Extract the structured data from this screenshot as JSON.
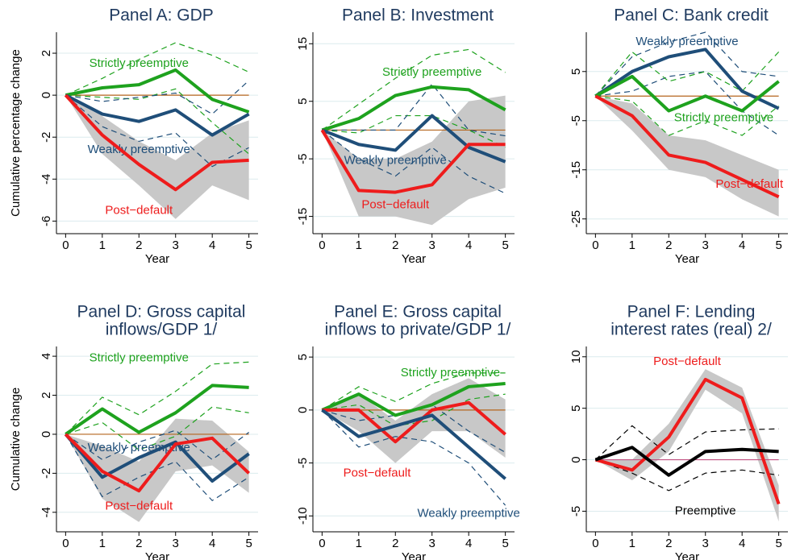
{
  "chart_data": [
    {
      "type": "line",
      "title": [
        "Panel A: GDP"
      ],
      "xlabel": "Year",
      "ylabel": "Cumulative percentage change",
      "x": [
        0,
        1,
        2,
        3,
        4,
        5
      ],
      "xlim": [
        -0.25,
        5.25
      ],
      "xticks": [
        0,
        1,
        2,
        3,
        4,
        5
      ],
      "ylim": [
        -6.6,
        3
      ],
      "yticks": [
        -6,
        -4,
        -2,
        0,
        2
      ],
      "grid": true,
      "hline": 0,
      "hline_color": "#b5651d",
      "series": [
        {
          "name": "Strictly preemptive",
          "color": "#1ea21e",
          "band": "dashed",
          "values": [
            0,
            0.35,
            0.5,
            1.2,
            -0.2,
            -0.8
          ],
          "lower": [
            0,
            -0.1,
            -0.2,
            0.3,
            -1.3,
            -2.8
          ],
          "upper": [
            0,
            0.8,
            1.7,
            2.5,
            1.9,
            1.1
          ]
        },
        {
          "name": "Weakly preemptive",
          "color": "#1f4e79",
          "band": "dashed",
          "values": [
            0,
            -0.9,
            -1.25,
            -0.7,
            -1.9,
            -0.9
          ],
          "lower": [
            0,
            -1.5,
            -2.2,
            -1.8,
            -3.4,
            -2.5
          ],
          "upper": [
            0,
            -0.3,
            -0.1,
            0.1,
            -0.9,
            0.7
          ]
        },
        {
          "name": "Post−default",
          "color": "#ee1c1c",
          "band": "shaded",
          "values": [
            0,
            -1.9,
            -3.3,
            -4.5,
            -3.2,
            -3.1
          ],
          "lower": [
            0,
            -2.8,
            -4.3,
            -5.9,
            -4.3,
            -5.0
          ],
          "upper": [
            0,
            -1.0,
            -2.2,
            -3.1,
            -1.8,
            -1.2
          ]
        }
      ]
    },
    {
      "type": "line",
      "title": [
        "Panel B: Investment"
      ],
      "xlabel": "Year",
      "x": [
        0,
        1,
        2,
        3,
        4,
        5
      ],
      "xlim": [
        -0.25,
        5.25
      ],
      "xticks": [
        0,
        1,
        2,
        3,
        4,
        5
      ],
      "ylim": [
        -18,
        17
      ],
      "yticks": [
        -15,
        -5,
        5,
        15
      ],
      "grid": true,
      "hline": 0,
      "hline_color": "#b5651d",
      "series": [
        {
          "name": "Strictly preemptive",
          "color": "#1ea21e",
          "band": "dashed",
          "values": [
            0,
            2,
            6,
            7.5,
            7,
            3.5
          ],
          "lower": [
            0,
            -0.5,
            2.5,
            2.5,
            0,
            -3
          ],
          "upper": [
            0,
            4.5,
            9,
            13,
            14,
            10
          ]
        },
        {
          "name": "Weakly preemptive",
          "color": "#1f4e79",
          "band": "dashed",
          "values": [
            0,
            -2.5,
            -3.5,
            2.5,
            -3,
            -5.5
          ],
          "lower": [
            0,
            -5,
            -8,
            -3,
            -8,
            -11
          ],
          "upper": [
            0,
            0,
            0,
            8,
            0,
            -1
          ]
        },
        {
          "name": "Post−default",
          "color": "#ee1c1c",
          "band": "shaded",
          "values": [
            0,
            -10.5,
            -10.8,
            -9.5,
            -2.5,
            -2.5
          ],
          "lower": [
            0,
            -15,
            -15,
            -16.5,
            -12,
            -10
          ],
          "upper": [
            0,
            -5,
            -5,
            -2,
            5,
            6
          ]
        }
      ]
    },
    {
      "type": "line",
      "title": [
        "Panel C: Bank credit"
      ],
      "xlabel": "Year",
      "x": [
        0,
        1,
        2,
        3,
        4,
        5
      ],
      "xlim": [
        -0.25,
        5.25
      ],
      "xticks": [
        0,
        1,
        2,
        3,
        4,
        5
      ],
      "ylim": [
        -28,
        13
      ],
      "yticks": [
        -25,
        -15,
        -5,
        5
      ],
      "grid": true,
      "hline": 0,
      "hline_color": "#b5651d",
      "series": [
        {
          "name": "Weakly preemptive",
          "color": "#1f4e79",
          "band": "dashed",
          "values": [
            0,
            5,
            8,
            9.5,
            1,
            -2.5
          ],
          "lower": [
            0,
            1,
            4,
            5,
            -3,
            -8
          ],
          "upper": [
            0,
            8,
            11,
            13,
            5,
            4
          ]
        },
        {
          "name": "Strictly preemptive",
          "color": "#1ea21e",
          "band": "dashed",
          "values": [
            0,
            4,
            -3,
            0,
            -3,
            3
          ],
          "lower": [
            0,
            -1,
            -8,
            -5,
            -8,
            -2
          ],
          "upper": [
            0,
            9,
            3,
            5,
            1,
            9
          ]
        },
        {
          "name": "Post−default",
          "color": "#ee1c1c",
          "band": "shaded",
          "values": [
            0,
            -4,
            -12,
            -13.5,
            -17,
            -20.5
          ],
          "lower": [
            0,
            -7,
            -15,
            -16.5,
            -21,
            -24.5
          ],
          "upper": [
            0,
            -1.5,
            -8,
            -9,
            -12,
            -15
          ]
        }
      ]
    },
    {
      "type": "line",
      "title": [
        "Panel D: Gross capital",
        "inflows/GDP 1/"
      ],
      "xlabel": "Year",
      "ylabel": "Cumulative change",
      "x": [
        0,
        1,
        2,
        3,
        4,
        5
      ],
      "xlim": [
        -0.25,
        5.25
      ],
      "xticks": [
        0,
        1,
        2,
        3,
        4,
        5
      ],
      "ylim": [
        -5,
        4.5
      ],
      "yticks": [
        -4,
        -2,
        0,
        2,
        4
      ],
      "grid": true,
      "hline": 0,
      "hline_color": "#b5651d",
      "series": [
        {
          "name": "Strictly preemptive",
          "color": "#1ea21e",
          "band": "dashed",
          "values": [
            0,
            1.3,
            0.1,
            1.1,
            2.5,
            2.4
          ],
          "lower": [
            0,
            0.6,
            -0.8,
            -0.1,
            1.4,
            1.1
          ],
          "upper": [
            0,
            1.9,
            1.0,
            2.2,
            3.6,
            3.7
          ]
        },
        {
          "name": "Weakly preemptive",
          "color": "#1f4e79",
          "band": "dashed",
          "values": [
            0,
            -2.2,
            -1.2,
            -0.4,
            -2.4,
            -1.0
          ],
          "lower": [
            0,
            -3.2,
            -2.2,
            -1.4,
            -3.4,
            -2.2
          ],
          "upper": [
            0,
            -1.3,
            -0.4,
            0.2,
            -1.3,
            0.1
          ]
        },
        {
          "name": "Post−default",
          "color": "#ee1c1c",
          "band": "shaded",
          "values": [
            0,
            -1.9,
            -2.9,
            -0.5,
            -0.2,
            -2.0
          ],
          "lower": [
            0,
            -3.3,
            -4.5,
            -1.9,
            -1.6,
            -3.0
          ],
          "upper": [
            0,
            -0.6,
            -1.4,
            0.8,
            0.7,
            -0.9
          ]
        }
      ]
    },
    {
      "type": "line",
      "title": [
        "Panel E: Gross capital",
        "inflows to private/GDP 1/"
      ],
      "xlabel": "Year",
      "x": [
        0,
        1,
        2,
        3,
        4,
        5
      ],
      "xlim": [
        -0.25,
        5.25
      ],
      "xticks": [
        0,
        1,
        2,
        3,
        4,
        5
      ],
      "ylim": [
        -11.5,
        6
      ],
      "yticks": [
        -10,
        -5,
        0,
        5
      ],
      "grid": true,
      "hline": 0,
      "hline_color": "#b5651d",
      "series": [
        {
          "name": "Strictly preemptive",
          "color": "#1ea21e",
          "band": "dashed",
          "values": [
            0,
            1.5,
            -0.5,
            0.5,
            2.2,
            2.5
          ],
          "lower": [
            0,
            0.5,
            -1.5,
            -1,
            1,
            1.5
          ],
          "upper": [
            0,
            2.2,
            0.8,
            2.5,
            3.5,
            3.5
          ]
        },
        {
          "name": "Post−default",
          "color": "#ee1c1c",
          "band": "shaded",
          "values": [
            0,
            0,
            -3,
            0,
            0.7,
            -2.3
          ],
          "lower": [
            0,
            -2,
            -5,
            -2,
            -2,
            -4.5
          ],
          "upper": [
            0,
            1.5,
            -1,
            1.5,
            3,
            1
          ]
        },
        {
          "name": "Weakly preemptive",
          "color": "#1f4e79",
          "band": "dashed",
          "values": [
            0,
            -2.5,
            -1.5,
            -0.5,
            -3.5,
            -6.5
          ],
          "lower": [
            0,
            -3.5,
            -2.5,
            -3,
            -5,
            -9
          ],
          "upper": [
            0,
            -1,
            -0.5,
            0.5,
            -2,
            -4
          ]
        }
      ]
    },
    {
      "type": "line",
      "title": [
        "Panel F: Lending",
        "interest rates (real) 2/"
      ],
      "xlabel": "Year",
      "x": [
        0,
        1,
        2,
        3,
        4,
        5
      ],
      "xlim": [
        -0.25,
        5.25
      ],
      "xticks": [
        0,
        1,
        2,
        3,
        4,
        5
      ],
      "ylim": [
        -7,
        11
      ],
      "yticks": [
        -5,
        0,
        5,
        10
      ],
      "grid": true,
      "hline": 0,
      "hline_color": "#c05080",
      "series": [
        {
          "name": "Post−default",
          "color": "#ee1c1c",
          "band": "shaded",
          "values": [
            0,
            -1,
            2.2,
            7.8,
            6,
            -4.3
          ],
          "lower": [
            0,
            -2,
            0.8,
            6.8,
            4.5,
            -6
          ],
          "upper": [
            0,
            0,
            3.5,
            8.8,
            7,
            -2.5
          ]
        },
        {
          "name": "Preemptive",
          "color": "#000000",
          "band": "dashed",
          "values": [
            0,
            1.2,
            -1.5,
            0.8,
            1,
            0.8
          ],
          "lower": [
            0,
            -1.3,
            -3,
            -1.3,
            -1,
            -1.5
          ],
          "upper": [
            0,
            3.3,
            0.5,
            2.7,
            2.9,
            3
          ]
        }
      ]
    }
  ]
}
